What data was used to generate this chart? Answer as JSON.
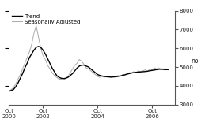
{
  "ylabel": "no.",
  "ylim": [
    3000,
    8000
  ],
  "yticks": [
    3000,
    4000,
    5000,
    6000,
    7000,
    8000
  ],
  "xlim_start": 2000.75,
  "xlim_end": 2006.83,
  "xtick_positions": [
    2000.75,
    2002.0,
    2004.0,
    2006.0
  ],
  "xtick_labels": [
    "Oct\n2000",
    "Oct\n2002",
    "Oct\n2004",
    "Oct\n2006"
  ],
  "legend_entries": [
    "Trend",
    "Seasonally Adjusted"
  ],
  "trend_color": "#000000",
  "sa_color": "#aaaaaa",
  "background_color": "#ffffff",
  "trend_data": [
    [
      2000.75,
      3700
    ],
    [
      2000.917,
      3800
    ],
    [
      2001.0,
      3950
    ],
    [
      2001.083,
      4150
    ],
    [
      2001.167,
      4400
    ],
    [
      2001.25,
      4650
    ],
    [
      2001.333,
      4950
    ],
    [
      2001.417,
      5200
    ],
    [
      2001.5,
      5500
    ],
    [
      2001.583,
      5700
    ],
    [
      2001.667,
      5900
    ],
    [
      2001.75,
      6050
    ],
    [
      2001.833,
      6100
    ],
    [
      2001.917,
      6050
    ],
    [
      2002.0,
      5900
    ],
    [
      2002.083,
      5700
    ],
    [
      2002.167,
      5450
    ],
    [
      2002.25,
      5200
    ],
    [
      2002.333,
      4950
    ],
    [
      2002.417,
      4750
    ],
    [
      2002.5,
      4550
    ],
    [
      2002.583,
      4450
    ],
    [
      2002.667,
      4400
    ],
    [
      2002.75,
      4380
    ],
    [
      2002.833,
      4400
    ],
    [
      2002.917,
      4450
    ],
    [
      2003.0,
      4550
    ],
    [
      2003.083,
      4650
    ],
    [
      2003.167,
      4800
    ],
    [
      2003.25,
      4950
    ],
    [
      2003.333,
      5050
    ],
    [
      2003.417,
      5100
    ],
    [
      2003.5,
      5100
    ],
    [
      2003.583,
      5050
    ],
    [
      2003.667,
      5000
    ],
    [
      2003.75,
      4900
    ],
    [
      2003.833,
      4800
    ],
    [
      2003.917,
      4700
    ],
    [
      2004.0,
      4600
    ],
    [
      2004.083,
      4550
    ],
    [
      2004.167,
      4520
    ],
    [
      2004.25,
      4500
    ],
    [
      2004.333,
      4480
    ],
    [
      2004.417,
      4470
    ],
    [
      2004.5,
      4460
    ],
    [
      2004.583,
      4470
    ],
    [
      2004.667,
      4480
    ],
    [
      2004.75,
      4500
    ],
    [
      2004.833,
      4520
    ],
    [
      2004.917,
      4550
    ],
    [
      2005.0,
      4580
    ],
    [
      2005.083,
      4620
    ],
    [
      2005.167,
      4650
    ],
    [
      2005.25,
      4680
    ],
    [
      2005.333,
      4700
    ],
    [
      2005.417,
      4720
    ],
    [
      2005.5,
      4730
    ],
    [
      2005.583,
      4740
    ],
    [
      2005.667,
      4750
    ],
    [
      2005.75,
      4760
    ],
    [
      2005.833,
      4780
    ],
    [
      2005.917,
      4800
    ],
    [
      2006.0,
      4820
    ],
    [
      2006.083,
      4840
    ],
    [
      2006.167,
      4860
    ],
    [
      2006.25,
      4880
    ],
    [
      2006.333,
      4880
    ],
    [
      2006.417,
      4870
    ],
    [
      2006.5,
      4860
    ],
    [
      2006.583,
      4860
    ]
  ],
  "sa_data": [
    [
      2000.75,
      3700
    ],
    [
      2000.917,
      3900
    ],
    [
      2001.0,
      4100
    ],
    [
      2001.083,
      4350
    ],
    [
      2001.167,
      4600
    ],
    [
      2001.25,
      4900
    ],
    [
      2001.333,
      5200
    ],
    [
      2001.417,
      5500
    ],
    [
      2001.5,
      5800
    ],
    [
      2001.583,
      6200
    ],
    [
      2001.667,
      6800
    ],
    [
      2001.75,
      7200
    ],
    [
      2001.833,
      6600
    ],
    [
      2001.917,
      6000
    ],
    [
      2002.0,
      5600
    ],
    [
      2002.083,
      5400
    ],
    [
      2002.167,
      5100
    ],
    [
      2002.25,
      4900
    ],
    [
      2002.333,
      4700
    ],
    [
      2002.417,
      4550
    ],
    [
      2002.5,
      4450
    ],
    [
      2002.583,
      4350
    ],
    [
      2002.667,
      4350
    ],
    [
      2002.75,
      4300
    ],
    [
      2002.833,
      4400
    ],
    [
      2002.917,
      4500
    ],
    [
      2003.0,
      4700
    ],
    [
      2003.083,
      4900
    ],
    [
      2003.167,
      5100
    ],
    [
      2003.25,
      5200
    ],
    [
      2003.333,
      5400
    ],
    [
      2003.417,
      5300
    ],
    [
      2003.5,
      5150
    ],
    [
      2003.583,
      4950
    ],
    [
      2003.667,
      4900
    ],
    [
      2003.75,
      4800
    ],
    [
      2003.833,
      4700
    ],
    [
      2003.917,
      4600
    ],
    [
      2004.0,
      4500
    ],
    [
      2004.083,
      4450
    ],
    [
      2004.167,
      4500
    ],
    [
      2004.25,
      4450
    ],
    [
      2004.333,
      4500
    ],
    [
      2004.417,
      4500
    ],
    [
      2004.5,
      4450
    ],
    [
      2004.583,
      4500
    ],
    [
      2004.667,
      4500
    ],
    [
      2004.75,
      4550
    ],
    [
      2004.833,
      4500
    ],
    [
      2004.917,
      4600
    ],
    [
      2005.0,
      4600
    ],
    [
      2005.083,
      4650
    ],
    [
      2005.167,
      4700
    ],
    [
      2005.25,
      4700
    ],
    [
      2005.333,
      4750
    ],
    [
      2005.417,
      4700
    ],
    [
      2005.5,
      4800
    ],
    [
      2005.583,
      4750
    ],
    [
      2005.667,
      4800
    ],
    [
      2005.75,
      4850
    ],
    [
      2005.833,
      4750
    ],
    [
      2005.917,
      4900
    ],
    [
      2006.0,
      4850
    ],
    [
      2006.083,
      4950
    ],
    [
      2006.167,
      4900
    ],
    [
      2006.25,
      4950
    ],
    [
      2006.333,
      4900
    ],
    [
      2006.417,
      4900
    ],
    [
      2006.5,
      4900
    ],
    [
      2006.583,
      4880
    ]
  ]
}
